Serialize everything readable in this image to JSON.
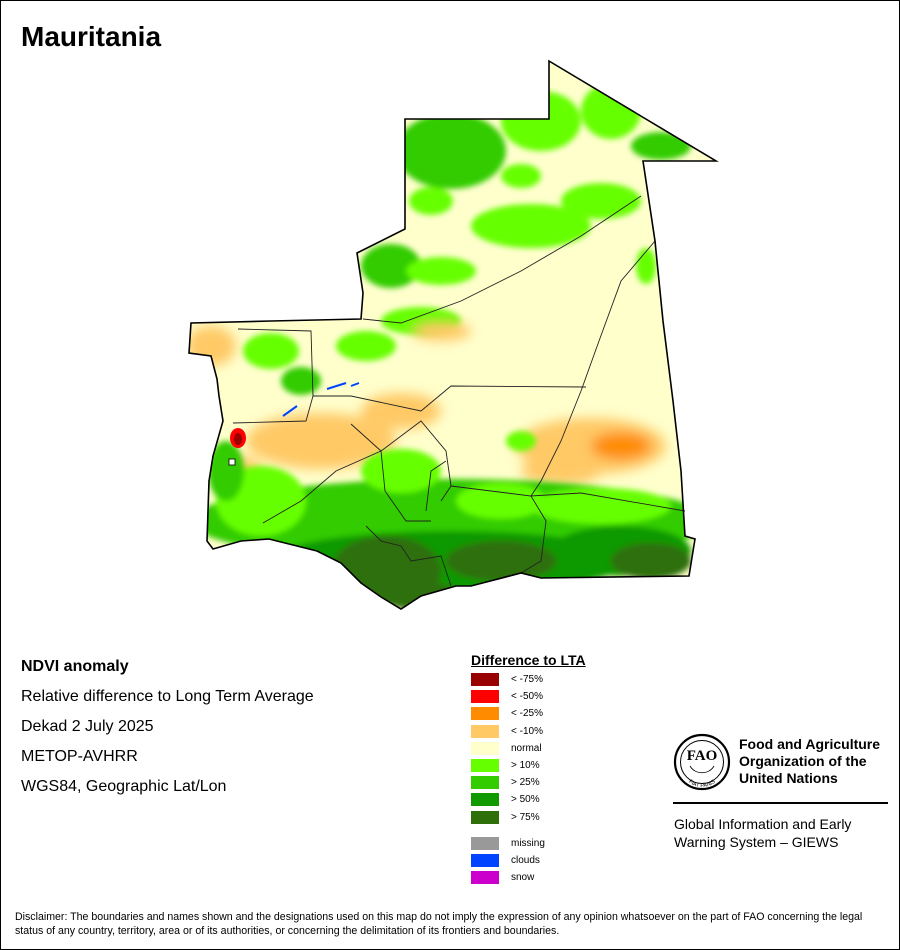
{
  "map": {
    "title": "Mauritania",
    "info_lines": [
      "NDVI anomaly",
      "Relative difference to Long Term Average",
      "Dekad 2 July 2025",
      "METOP-AVHRR",
      "WGS84, Geographic Lat/Lon"
    ]
  },
  "legend": {
    "title": "Difference to LTA",
    "classes": [
      {
        "label": "< -75%",
        "color": "#990000"
      },
      {
        "label": "< -50%",
        "color": "#ff0000"
      },
      {
        "label": "< -25%",
        "color": "#ff8c00"
      },
      {
        "label": "< -10%",
        "color": "#ffc966"
      },
      {
        "label": "normal",
        "color": "#ffffcc"
      },
      {
        "label": "> 10%",
        "color": "#66ff00"
      },
      {
        "label": "> 25%",
        "color": "#33cc00"
      },
      {
        "label": "> 50%",
        "color": "#119900"
      },
      {
        "label": "> 75%",
        "color": "#2f6f0a"
      }
    ],
    "extra": [
      {
        "label": "missing",
        "color": "#999999"
      },
      {
        "label": "clouds",
        "color": "#0044ff"
      },
      {
        "label": "snow",
        "color": "#cc00cc"
      }
    ]
  },
  "org": {
    "name_lines": [
      "Food and Agriculture",
      "Organization of the",
      "United Nations"
    ],
    "logo_text": "FAO",
    "logo_motto": "FIAT PANIS",
    "giews_lines": [
      "Global Information and Early",
      "Warning System – GIEWS"
    ]
  },
  "disclaimer": "Disclaimer: The boundaries and names shown and the designations used on this map do not imply the expression of any opinion whatsoever on the part of FAO concerning the legal status of any country, territory, area or of its authorities, or concerning the delimitation of its frontiers and boundaries."
}
